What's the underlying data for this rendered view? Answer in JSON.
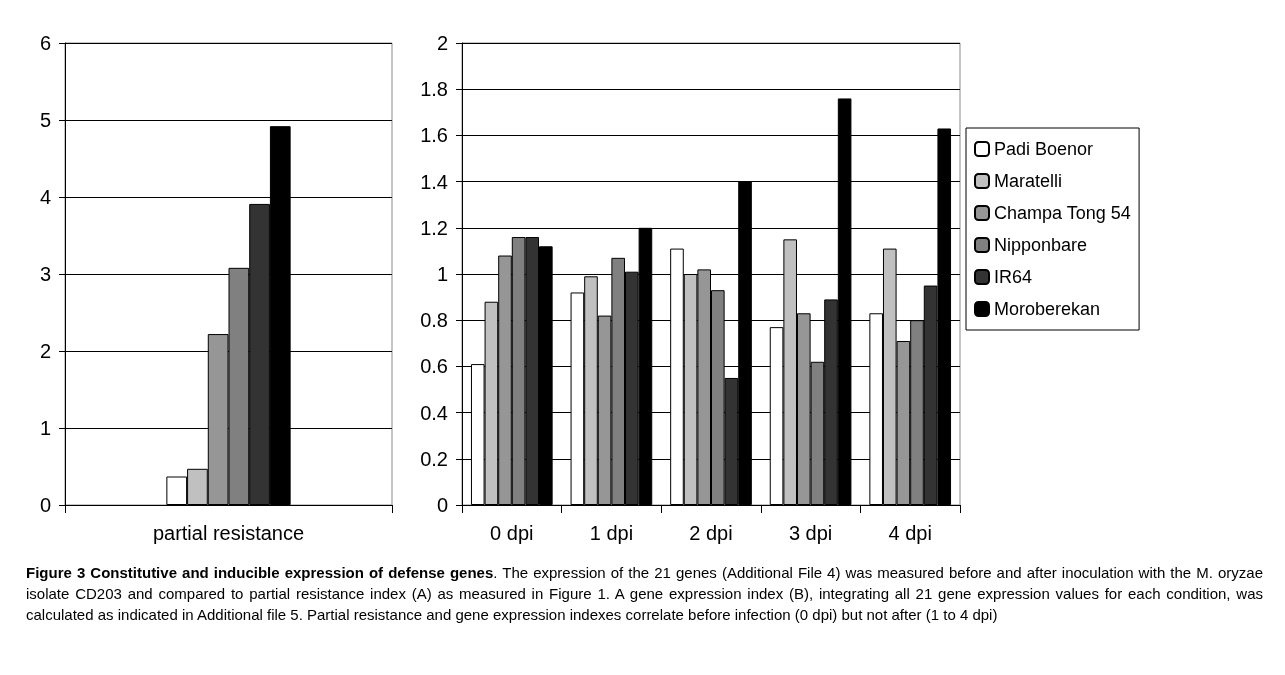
{
  "chart_data": [
    {
      "type": "bar",
      "categories": [
        "partial resistance"
      ],
      "series": [
        {
          "color": "#ffffff",
          "values": [
            0.37
          ]
        },
        {
          "color": "#c0c0c0",
          "values": [
            0.47
          ]
        },
        {
          "color": "#969696",
          "values": [
            2.22
          ]
        },
        {
          "color": "#808080",
          "values": [
            3.08
          ]
        },
        {
          "color": "#333333",
          "values": [
            3.91
          ]
        },
        {
          "color": "#000000",
          "values": [
            4.92
          ]
        }
      ],
      "ylim": [
        0,
        6
      ],
      "yticks": [
        0,
        1,
        2,
        3,
        4,
        5,
        6
      ],
      "grid": "y",
      "legend": false
    },
    {
      "type": "bar",
      "categories": [
        "0 dpi",
        "1 dpi",
        "2 dpi",
        "3 dpi",
        "4 dpi"
      ],
      "series": [
        {
          "name": "Padi Boenor",
          "color": "#ffffff",
          "values": [
            0.61,
            0.92,
            1.11,
            0.77,
            0.83
          ]
        },
        {
          "name": "Maratelli",
          "color": "#c0c0c0",
          "values": [
            0.88,
            0.99,
            1.0,
            1.15,
            1.11
          ]
        },
        {
          "name": "Champa Tong 54",
          "color": "#969696",
          "values": [
            1.08,
            0.82,
            1.02,
            0.83,
            0.71
          ]
        },
        {
          "name": "Nipponbare",
          "color": "#808080",
          "values": [
            1.16,
            1.07,
            0.93,
            0.62,
            0.8
          ]
        },
        {
          "name": "IR64",
          "color": "#333333",
          "values": [
            1.16,
            1.01,
            0.55,
            0.89,
            0.95
          ]
        },
        {
          "name": "Moroberekan",
          "color": "#000000",
          "values": [
            1.12,
            1.2,
            1.4,
            1.76,
            1.63
          ]
        }
      ],
      "ylim": [
        0,
        2
      ],
      "yticks": [
        0,
        0.2,
        0.4,
        0.6,
        0.8,
        1,
        1.2,
        1.4,
        1.6,
        1.8,
        2
      ],
      "grid": "y",
      "legend": "right",
      "annotations": [
        "Figure 3 Constitutive and inducible expression of defense genes",
        ". The expression of the 21 genes (Additional File 4) was measured before and after inoculation with the M. oryzae isolate CD203 and compared to partial resistance index (A) as measured in Figure 1. A gene expression index (B), integrating all 21 gene expression values for each condition, was calculated as indicated in Additional file 5. Partial resistance and gene expression indexes correlate before infection (0 dpi) but not after (1 to 4 dpi)"
      ]
    }
  ]
}
